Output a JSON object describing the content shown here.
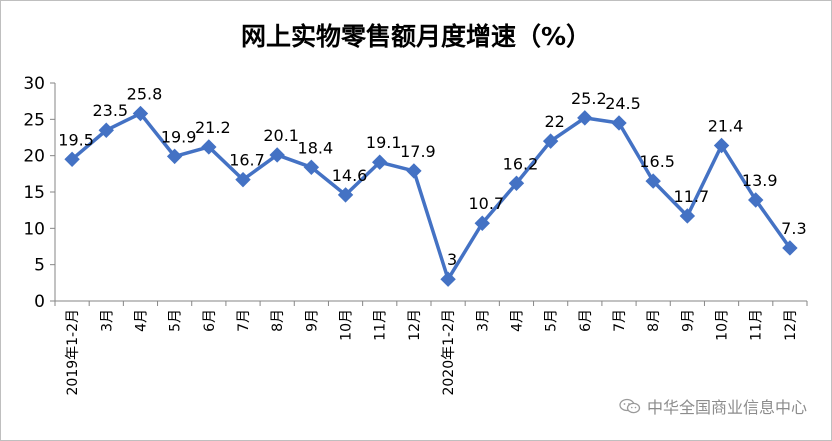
{
  "chart_data": {
    "type": "line",
    "title": "网上实物零售额月度增速（%）",
    "categories": [
      "2019年1-2月",
      "3月",
      "4月",
      "5月",
      "6月",
      "7月",
      "8月",
      "9月",
      "10月",
      "11月",
      "12月",
      "2020年1-2月",
      "3月",
      "4月",
      "5月",
      "6月",
      "7月",
      "8月",
      "9月",
      "10月",
      "11月",
      "12月"
    ],
    "series": [
      {
        "values": [
          19.5,
          23.5,
          25.8,
          19.9,
          21.2,
          16.7,
          20.1,
          18.4,
          14.6,
          19.1,
          17.9,
          3,
          10.7,
          16.2,
          22,
          25.2,
          24.5,
          16.5,
          11.7,
          21.4,
          13.9,
          7.3
        ]
      }
    ],
    "data_labels": [
      "19.5",
      "23.5",
      "25.8",
      "19.9",
      "21.2",
      "16.7",
      "20.1",
      "18.4",
      "14.6",
      "19.1",
      "17.9",
      "3",
      "10.7",
      "16.2",
      "22",
      "25.2",
      "24.5",
      "16.5",
      "11.7",
      "21.4",
      "13.9",
      "7.3"
    ],
    "yticks": [
      0,
      5,
      10,
      15,
      20,
      25,
      30
    ],
    "ylim": [
      0,
      30
    ],
    "grid": false,
    "legend": false,
    "colors": {
      "line": "#4472C4",
      "axis": "#868686"
    }
  },
  "watermark": {
    "text": "中华全国商业信息中心",
    "icon": "wechat-icon"
  }
}
